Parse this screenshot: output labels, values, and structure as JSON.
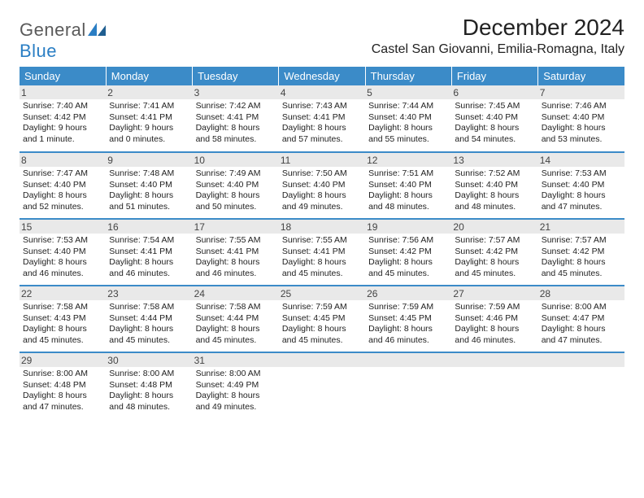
{
  "logo": {
    "general": "General",
    "blue": "Blue"
  },
  "title": "December 2024",
  "location": "Castel San Giovanni, Emilia-Romagna, Italy",
  "colors": {
    "header_bg": "#3b8bc8",
    "header_text": "#ffffff",
    "daynum_bg": "#e9e9e9",
    "rule": "#3b8bc8",
    "logo_gray": "#5a5a5a",
    "logo_blue": "#2a7ec4"
  },
  "weekdays": [
    "Sunday",
    "Monday",
    "Tuesday",
    "Wednesday",
    "Thursday",
    "Friday",
    "Saturday"
  ],
  "weeks": [
    [
      {
        "n": "1",
        "sunrise": "7:40 AM",
        "sunset": "4:42 PM",
        "daylight": "9 hours and 1 minute."
      },
      {
        "n": "2",
        "sunrise": "7:41 AM",
        "sunset": "4:41 PM",
        "daylight": "9 hours and 0 minutes."
      },
      {
        "n": "3",
        "sunrise": "7:42 AM",
        "sunset": "4:41 PM",
        "daylight": "8 hours and 58 minutes."
      },
      {
        "n": "4",
        "sunrise": "7:43 AM",
        "sunset": "4:41 PM",
        "daylight": "8 hours and 57 minutes."
      },
      {
        "n": "5",
        "sunrise": "7:44 AM",
        "sunset": "4:40 PM",
        "daylight": "8 hours and 55 minutes."
      },
      {
        "n": "6",
        "sunrise": "7:45 AM",
        "sunset": "4:40 PM",
        "daylight": "8 hours and 54 minutes."
      },
      {
        "n": "7",
        "sunrise": "7:46 AM",
        "sunset": "4:40 PM",
        "daylight": "8 hours and 53 minutes."
      }
    ],
    [
      {
        "n": "8",
        "sunrise": "7:47 AM",
        "sunset": "4:40 PM",
        "daylight": "8 hours and 52 minutes."
      },
      {
        "n": "9",
        "sunrise": "7:48 AM",
        "sunset": "4:40 PM",
        "daylight": "8 hours and 51 minutes."
      },
      {
        "n": "10",
        "sunrise": "7:49 AM",
        "sunset": "4:40 PM",
        "daylight": "8 hours and 50 minutes."
      },
      {
        "n": "11",
        "sunrise": "7:50 AM",
        "sunset": "4:40 PM",
        "daylight": "8 hours and 49 minutes."
      },
      {
        "n": "12",
        "sunrise": "7:51 AM",
        "sunset": "4:40 PM",
        "daylight": "8 hours and 48 minutes."
      },
      {
        "n": "13",
        "sunrise": "7:52 AM",
        "sunset": "4:40 PM",
        "daylight": "8 hours and 48 minutes."
      },
      {
        "n": "14",
        "sunrise": "7:53 AM",
        "sunset": "4:40 PM",
        "daylight": "8 hours and 47 minutes."
      }
    ],
    [
      {
        "n": "15",
        "sunrise": "7:53 AM",
        "sunset": "4:40 PM",
        "daylight": "8 hours and 46 minutes."
      },
      {
        "n": "16",
        "sunrise": "7:54 AM",
        "sunset": "4:41 PM",
        "daylight": "8 hours and 46 minutes."
      },
      {
        "n": "17",
        "sunrise": "7:55 AM",
        "sunset": "4:41 PM",
        "daylight": "8 hours and 46 minutes."
      },
      {
        "n": "18",
        "sunrise": "7:55 AM",
        "sunset": "4:41 PM",
        "daylight": "8 hours and 45 minutes."
      },
      {
        "n": "19",
        "sunrise": "7:56 AM",
        "sunset": "4:42 PM",
        "daylight": "8 hours and 45 minutes."
      },
      {
        "n": "20",
        "sunrise": "7:57 AM",
        "sunset": "4:42 PM",
        "daylight": "8 hours and 45 minutes."
      },
      {
        "n": "21",
        "sunrise": "7:57 AM",
        "sunset": "4:42 PM",
        "daylight": "8 hours and 45 minutes."
      }
    ],
    [
      {
        "n": "22",
        "sunrise": "7:58 AM",
        "sunset": "4:43 PM",
        "daylight": "8 hours and 45 minutes."
      },
      {
        "n": "23",
        "sunrise": "7:58 AM",
        "sunset": "4:44 PM",
        "daylight": "8 hours and 45 minutes."
      },
      {
        "n": "24",
        "sunrise": "7:58 AM",
        "sunset": "4:44 PM",
        "daylight": "8 hours and 45 minutes."
      },
      {
        "n": "25",
        "sunrise": "7:59 AM",
        "sunset": "4:45 PM",
        "daylight": "8 hours and 45 minutes."
      },
      {
        "n": "26",
        "sunrise": "7:59 AM",
        "sunset": "4:45 PM",
        "daylight": "8 hours and 46 minutes."
      },
      {
        "n": "27",
        "sunrise": "7:59 AM",
        "sunset": "4:46 PM",
        "daylight": "8 hours and 46 minutes."
      },
      {
        "n": "28",
        "sunrise": "8:00 AM",
        "sunset": "4:47 PM",
        "daylight": "8 hours and 47 minutes."
      }
    ],
    [
      {
        "n": "29",
        "sunrise": "8:00 AM",
        "sunset": "4:48 PM",
        "daylight": "8 hours and 47 minutes."
      },
      {
        "n": "30",
        "sunrise": "8:00 AM",
        "sunset": "4:48 PM",
        "daylight": "8 hours and 48 minutes."
      },
      {
        "n": "31",
        "sunrise": "8:00 AM",
        "sunset": "4:49 PM",
        "daylight": "8 hours and 49 minutes."
      },
      null,
      null,
      null,
      null
    ]
  ],
  "labels": {
    "sunrise": "Sunrise:",
    "sunset": "Sunset:",
    "daylight": "Daylight:"
  }
}
